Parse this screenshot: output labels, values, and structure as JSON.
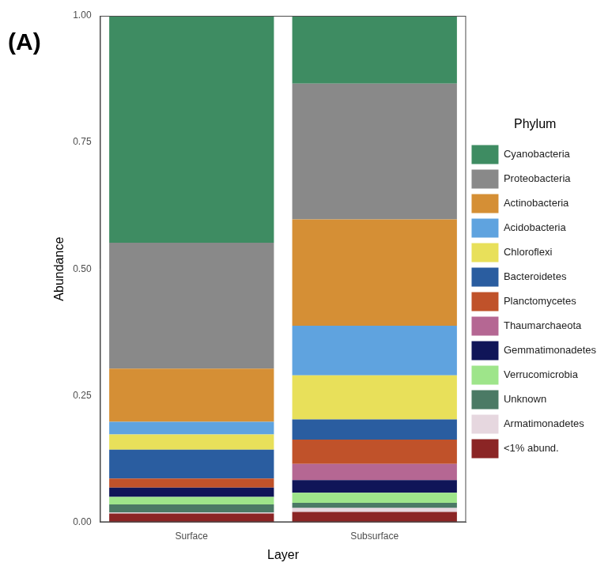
{
  "chart_data": {
    "type": "bar",
    "title": "(A)",
    "x_label": "Layer",
    "y_label": "Abundance",
    "legend_title": "Phylum",
    "categories": [
      "Surface",
      "Subsurface"
    ],
    "stacked": true,
    "grid": false,
    "legend": "right",
    "ylim": [
      0,
      1
    ],
    "yticks": [
      {
        "value": 0,
        "label": "0.00"
      },
      {
        "value": 0.25,
        "label": "0.25"
      },
      {
        "value": 0.5,
        "label": "0.50"
      },
      {
        "value": 0.75,
        "label": "0.75"
      },
      {
        "value": 1,
        "label": "1.00"
      }
    ],
    "series": [
      {
        "name": "Cyanobacteria",
        "color": "#3e8c62",
        "values": [
          0.448,
          0.134
        ]
      },
      {
        "name": "Proteobacteria",
        "color": "#898989",
        "values": [
          0.249,
          0.268
        ]
      },
      {
        "name": "Actinobacteria",
        "color": "#d58f35",
        "values": [
          0.105,
          0.21
        ]
      },
      {
        "name": "Acidobacteria",
        "color": "#5fa3df",
        "values": [
          0.025,
          0.098
        ]
      },
      {
        "name": "Chloroflexi",
        "color": "#e8e05a",
        "values": [
          0.03,
          0.087
        ]
      },
      {
        "name": "Bacteroidetes",
        "color": "#2a5da0",
        "values": [
          0.057,
          0.04
        ]
      },
      {
        "name": "Planctomycetes",
        "color": "#c0522a",
        "values": [
          0.018,
          0.048
        ]
      },
      {
        "name": "Thaumarchaeota",
        "color": "#b56793",
        "values": [
          0,
          0.032
        ]
      },
      {
        "name": "Gemmatimonadetes",
        "color": "#101558",
        "values": [
          0.018,
          0.025
        ]
      },
      {
        "name": "Verrucomicrobia",
        "color": "#9ee58a",
        "values": [
          0.015,
          0.02
        ]
      },
      {
        "name": "Unknown",
        "color": "#4b7a65",
        "values": [
          0.016,
          0.01
        ]
      },
      {
        "name": "Armatimonadetes",
        "color": "#e6d7df",
        "values": [
          0.002,
          0.008
        ]
      },
      {
        "name": "<1% abund.",
        "color": "#8b2525",
        "values": [
          0.017,
          0.02
        ]
      }
    ]
  }
}
